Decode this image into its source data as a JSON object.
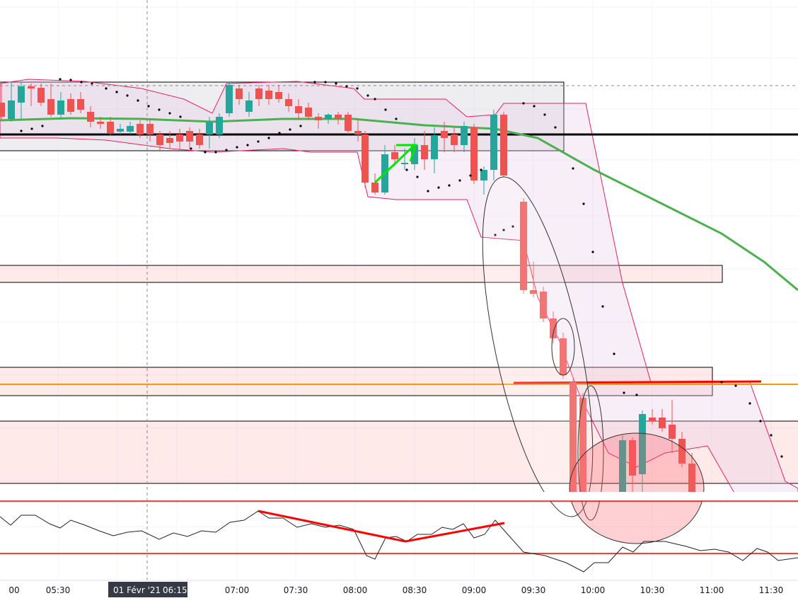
{
  "x_axis": {
    "labels": [
      "00",
      "05:30",
      "07:00",
      "07:30",
      "08:00",
      "08:30",
      "09:00",
      "09:30",
      "10:00",
      "10:30",
      "11:00",
      "11:30"
    ]
  },
  "crosshair": {
    "date": "01 Févr '21",
    "time": "06:15"
  }
}
